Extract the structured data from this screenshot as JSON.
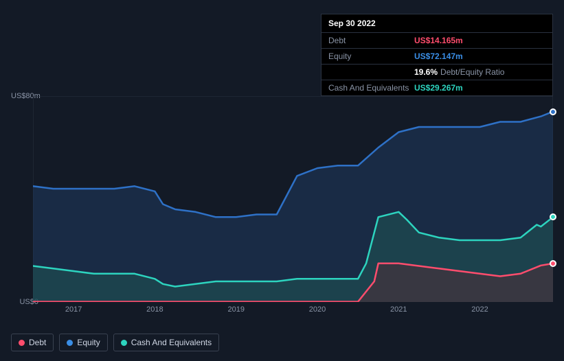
{
  "tooltip": {
    "date": "Sep 30 2022",
    "rows": [
      {
        "label": "Debt",
        "value": "US$14.165m",
        "cls": "debt"
      },
      {
        "label": "Equity",
        "value": "US$72.147m",
        "cls": "equity"
      },
      {
        "label": "",
        "ratio_val": "19.6%",
        "ratio_lbl": "Debt/Equity Ratio"
      },
      {
        "label": "Cash And Equivalents",
        "value": "US$29.267m",
        "cls": "cash"
      }
    ]
  },
  "chart": {
    "type": "area",
    "background": "#131a26",
    "y": {
      "min": 0,
      "max": 80,
      "labels": [
        {
          "v": 80,
          "text": "US$80m"
        },
        {
          "v": 0,
          "text": "US$0"
        }
      ]
    },
    "x": {
      "min": 2016.5,
      "max": 2022.9,
      "ticks": [
        2017,
        2018,
        2019,
        2020,
        2021,
        2022
      ]
    },
    "series": {
      "equity": {
        "color": "#2e71c7",
        "fill": "#1f3a5f",
        "fill_opacity": 0.55,
        "points": [
          [
            2016.5,
            45
          ],
          [
            2016.75,
            44
          ],
          [
            2017,
            44
          ],
          [
            2017.25,
            44
          ],
          [
            2017.5,
            44
          ],
          [
            2017.75,
            45
          ],
          [
            2018,
            43
          ],
          [
            2018.1,
            38
          ],
          [
            2018.25,
            36
          ],
          [
            2018.5,
            35
          ],
          [
            2018.75,
            33
          ],
          [
            2019,
            33
          ],
          [
            2019.25,
            34
          ],
          [
            2019.5,
            34
          ],
          [
            2019.6,
            40
          ],
          [
            2019.75,
            49
          ],
          [
            2020,
            52
          ],
          [
            2020.25,
            53
          ],
          [
            2020.5,
            53
          ],
          [
            2020.75,
            60
          ],
          [
            2021,
            66
          ],
          [
            2021.25,
            68
          ],
          [
            2021.5,
            68
          ],
          [
            2021.75,
            68
          ],
          [
            2022,
            68
          ],
          [
            2022.25,
            70
          ],
          [
            2022.5,
            70
          ],
          [
            2022.75,
            72.1
          ],
          [
            2022.9,
            74
          ]
        ]
      },
      "cash": {
        "color": "#2dd4bf",
        "fill": "#1f5a56",
        "fill_opacity": 0.5,
        "points": [
          [
            2016.5,
            14
          ],
          [
            2016.75,
            13
          ],
          [
            2017,
            12
          ],
          [
            2017.25,
            11
          ],
          [
            2017.5,
            11
          ],
          [
            2017.75,
            11
          ],
          [
            2018,
            9
          ],
          [
            2018.1,
            7
          ],
          [
            2018.25,
            6
          ],
          [
            2018.5,
            7
          ],
          [
            2018.75,
            8
          ],
          [
            2019,
            8
          ],
          [
            2019.25,
            8
          ],
          [
            2019.5,
            8
          ],
          [
            2019.75,
            9
          ],
          [
            2020,
            9
          ],
          [
            2020.25,
            9
          ],
          [
            2020.5,
            9
          ],
          [
            2020.6,
            15
          ],
          [
            2020.75,
            33
          ],
          [
            2021,
            35
          ],
          [
            2021.1,
            32
          ],
          [
            2021.25,
            27
          ],
          [
            2021.5,
            25
          ],
          [
            2021.75,
            24
          ],
          [
            2022,
            24
          ],
          [
            2022.25,
            24
          ],
          [
            2022.5,
            25
          ],
          [
            2022.7,
            30
          ],
          [
            2022.75,
            29.3
          ],
          [
            2022.9,
            33
          ]
        ]
      },
      "debt": {
        "color": "#ff4d6d",
        "fill": "#5a2a34",
        "fill_opacity": 0.45,
        "points": [
          [
            2016.5,
            0.1
          ],
          [
            2017,
            0.1
          ],
          [
            2017.5,
            0.1
          ],
          [
            2018,
            0.1
          ],
          [
            2018.5,
            0.1
          ],
          [
            2019,
            0.1
          ],
          [
            2019.5,
            0.1
          ],
          [
            2020,
            0.1
          ],
          [
            2020.5,
            0.1
          ],
          [
            2020.7,
            8
          ],
          [
            2020.75,
            15
          ],
          [
            2021,
            15
          ],
          [
            2021.25,
            14
          ],
          [
            2021.5,
            13
          ],
          [
            2021.75,
            12
          ],
          [
            2022,
            11
          ],
          [
            2022.25,
            10
          ],
          [
            2022.5,
            11
          ],
          [
            2022.75,
            14.2
          ],
          [
            2022.9,
            15
          ]
        ]
      }
    },
    "end_markers": [
      {
        "series": "equity",
        "x": 2022.9,
        "y": 74,
        "color": "#2e71c7"
      },
      {
        "series": "cash",
        "x": 2022.9,
        "y": 33,
        "color": "#2dd4bf"
      },
      {
        "series": "debt",
        "x": 2022.9,
        "y": 15,
        "color": "#ff4d6d"
      }
    ],
    "line_width": 2.5,
    "plot_border": "#2a3240"
  },
  "legend": [
    {
      "label": "Debt",
      "color": "#ff4d6d"
    },
    {
      "label": "Equity",
      "color": "#3a8ee6"
    },
    {
      "label": "Cash And Equivalents",
      "color": "#2dd4bf"
    }
  ]
}
